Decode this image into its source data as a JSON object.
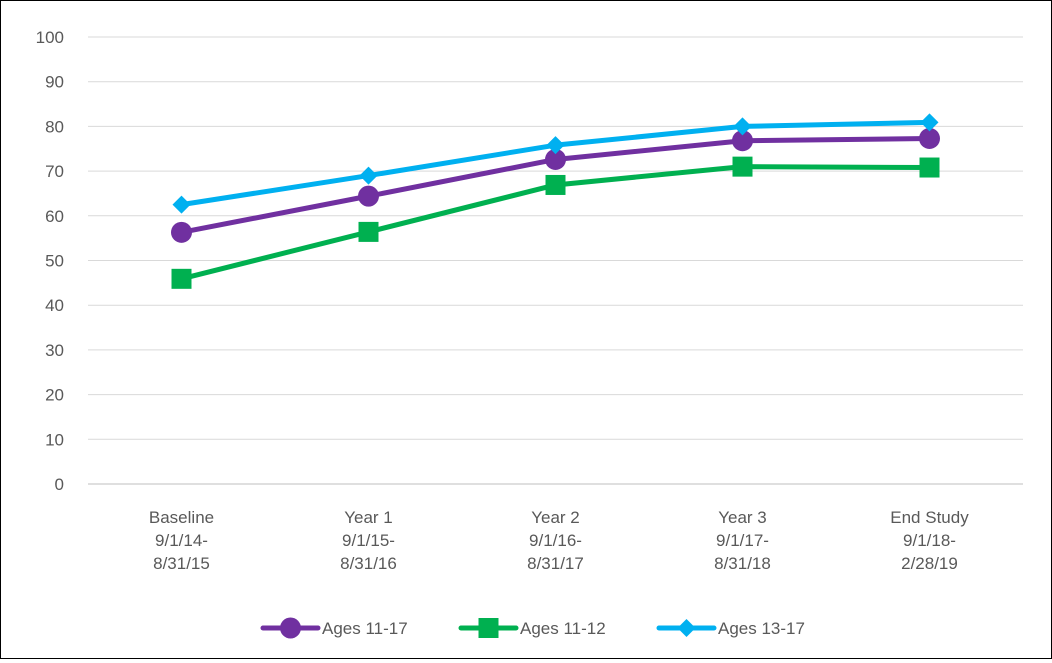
{
  "chart_data": {
    "type": "line",
    "title": "",
    "xlabel": "",
    "ylabel": "",
    "ylim": [
      0,
      100
    ],
    "yticks": [
      0,
      10,
      20,
      30,
      40,
      50,
      60,
      70,
      80,
      90,
      100
    ],
    "grid": true,
    "legend": "bottom",
    "categories": [
      [
        "Baseline",
        "9/1/14-",
        "8/31/15"
      ],
      [
        "Year 1",
        "9/1/15-",
        "8/31/16"
      ],
      [
        "Year 2",
        "9/1/16-",
        "8/31/17"
      ],
      [
        "Year 3",
        "9/1/17-",
        "8/31/18"
      ],
      [
        "End Study",
        "9/1/18-",
        "2/28/19"
      ]
    ],
    "series": [
      {
        "name": "Ages 11-17",
        "color": "#7030A0",
        "marker": "circle",
        "values": [
          56.3,
          64.4,
          72.6,
          76.8,
          77.3
        ]
      },
      {
        "name": "Ages 11-12",
        "color": "#00B050",
        "marker": "square",
        "values": [
          45.9,
          56.4,
          66.9,
          71.0,
          70.8
        ]
      },
      {
        "name": "Ages 13-17",
        "color": "#00B0F0",
        "marker": "diamond",
        "values": [
          62.5,
          69.0,
          75.8,
          80.0,
          80.9
        ]
      }
    ]
  }
}
